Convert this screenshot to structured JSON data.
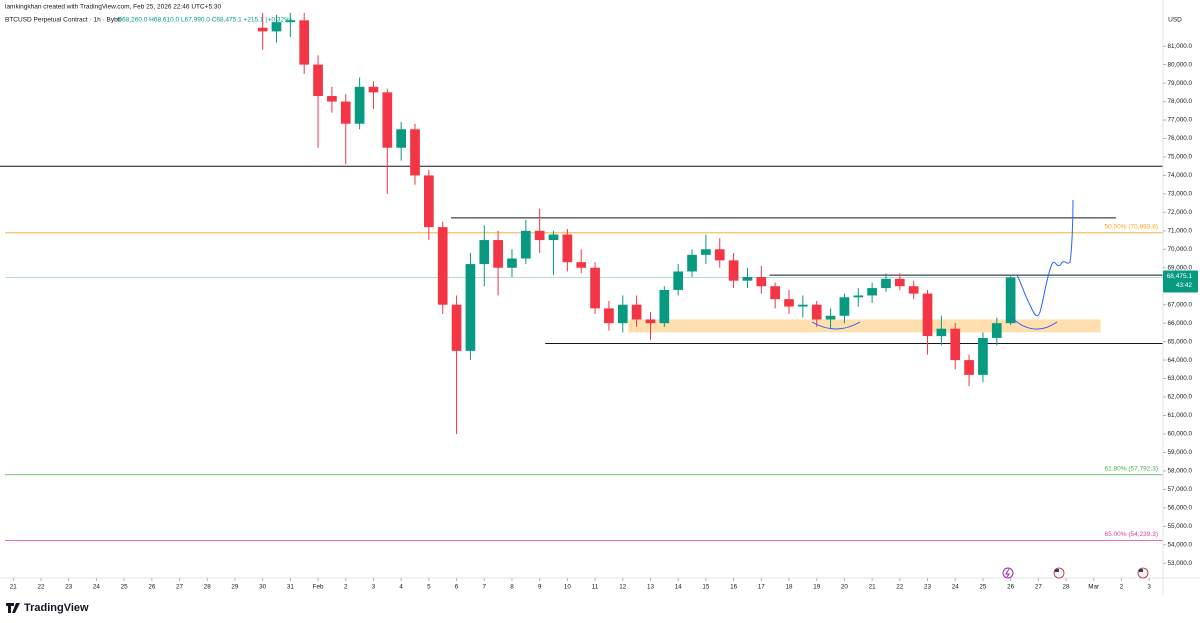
{
  "chart_data": {
    "type": "candlestick",
    "title": "lamkingkhan created with TradingView.com, Feb 25, 2026 22:46 UTC+5:30",
    "symbol": "BTCUSD Perpetual Contract · 1h · Bybit",
    "ohlc_legend": "O68,260.0 H68,610.0 L67,990.0 C68,475.1 +215.1 (+0.32%)",
    "currency": "USD",
    "watermark": "TradingView",
    "up_color": "#089981",
    "down_color": "#f23645",
    "xlim": [
      20.7,
      62.5
    ],
    "ylim": [
      52200,
      82850
    ],
    "xticks": [
      21,
      22,
      23,
      24,
      25,
      26,
      27,
      28,
      29,
      30,
      31,
      {
        "value": 32,
        "label": "Feb"
      },
      {
        "value": 33,
        "label": "2"
      },
      {
        "value": 34,
        "label": "3"
      },
      {
        "value": 35,
        "label": "4"
      },
      {
        "value": 36,
        "label": "5"
      },
      {
        "value": 37,
        "label": "6"
      },
      {
        "value": 38,
        "label": "7"
      },
      {
        "value": 39,
        "label": "8"
      },
      {
        "value": 40,
        "label": "9"
      },
      {
        "value": 41,
        "label": "10"
      },
      {
        "value": 42,
        "label": "11"
      },
      {
        "value": 43,
        "label": "12"
      },
      {
        "value": 44,
        "label": "13"
      },
      {
        "value": 45,
        "label": "14"
      },
      {
        "value": 46,
        "label": "15"
      },
      {
        "value": 47,
        "label": "16"
      },
      {
        "value": 48,
        "label": "17"
      },
      {
        "value": 49,
        "label": "18"
      },
      {
        "value": 50,
        "label": "19"
      },
      {
        "value": 51,
        "label": "20"
      },
      {
        "value": 52,
        "label": "21"
      },
      {
        "value": 53,
        "label": "22"
      },
      {
        "value": 54,
        "label": "23"
      },
      {
        "value": 55,
        "label": "24"
      },
      {
        "value": 56,
        "label": "25"
      },
      {
        "value": 57,
        "label": "26"
      },
      {
        "value": 58,
        "label": "27"
      },
      {
        "value": 59,
        "label": "28"
      },
      {
        "value": 60,
        "label": "Mar"
      },
      {
        "value": 61,
        "label": "2"
      },
      {
        "value": 62,
        "label": "3"
      }
    ],
    "yticks": [
      {
        "value": 53000,
        "label": "53,000.0"
      },
      {
        "value": 54000,
        "label": "54,000.0"
      },
      {
        "value": 55000,
        "label": "55,000.0"
      },
      {
        "value": 56000,
        "label": "56,000.0"
      },
      {
        "value": 57000,
        "label": "57,000.0"
      },
      {
        "value": 58000,
        "label": "58,000.0"
      },
      {
        "value": 59000,
        "label": "59,000.0"
      },
      {
        "value": 60000,
        "label": "60,000.0"
      },
      {
        "value": 61000,
        "label": "61,000.0"
      },
      {
        "value": 62000,
        "label": "62,000.0"
      },
      {
        "value": 63000,
        "label": "63,000.0"
      },
      {
        "value": 64000,
        "label": "64,000.0"
      },
      {
        "value": 65000,
        "label": "65,000.0"
      },
      {
        "value": 66000,
        "label": "66,000.0"
      },
      {
        "value": 67000,
        "label": "67,000.0"
      },
      {
        "value": 68000,
        "label": "68,000.0"
      },
      {
        "value": 69000,
        "label": "69,000.0"
      },
      {
        "value": 70000,
        "label": "70,000.0"
      },
      {
        "value": 71000,
        "label": "71,000.0"
      },
      {
        "value": 72000,
        "label": "72,000.0"
      },
      {
        "value": 73000,
        "label": "73,000.0"
      },
      {
        "value": 74000,
        "label": "74,000.0"
      },
      {
        "value": 75000,
        "label": "75,000.0"
      },
      {
        "value": 76000,
        "label": "76,000.0"
      },
      {
        "value": 77000,
        "label": "77,000.0"
      },
      {
        "value": 78000,
        "label": "78,000.0"
      },
      {
        "value": 79000,
        "label": "79,000.0"
      },
      {
        "value": 80000,
        "label": "80,000.0"
      },
      {
        "value": 81000,
        "label": "81,000.0"
      }
    ],
    "x": [
      30,
      30.5,
      31,
      31.5,
      32,
      32.5,
      33,
      33.5,
      34,
      34.5,
      35,
      35.5,
      36,
      36.5,
      37,
      37.5,
      38,
      38.5,
      39,
      39.5,
      40,
      40.5,
      41,
      41.5,
      42,
      42.5,
      43,
      43.5,
      44,
      44.5,
      45,
      45.5,
      46,
      46.5,
      47,
      47.5,
      48,
      48.5,
      49,
      49.5,
      50,
      50.5,
      51,
      51.5,
      52,
      52.5,
      53,
      53.5,
      54,
      54.5,
      55,
      55.5,
      56,
      56.5,
      57
    ],
    "open": [
      82000,
      81800,
      82300,
      82400,
      80000,
      78300,
      78000,
      76800,
      78800,
      78500,
      75500,
      76500,
      74000,
      71200,
      67000,
      64500,
      69200,
      70500,
      69000,
      69500,
      71000,
      70500,
      70800,
      69300,
      69000,
      66800,
      66000,
      67000,
      66200,
      66000,
      67800,
      68800,
      69700,
      70000,
      69400,
      68300,
      68500,
      68000,
      67300,
      66900,
      67000,
      66200,
      66400,
      67400,
      67500,
      67900,
      68400,
      68000,
      67600,
      65300,
      65700,
      64000,
      63200,
      65200,
      66000
    ],
    "high": [
      82800,
      82700,
      82800,
      82800,
      80500,
      78800,
      78400,
      79300,
      79100,
      78700,
      76900,
      76800,
      74300,
      71500,
      67500,
      69800,
      71300,
      71000,
      70000,
      71600,
      72200,
      71000,
      71100,
      70000,
      69300,
      67200,
      67500,
      67500,
      66600,
      68000,
      69200,
      70000,
      70800,
      70600,
      69800,
      69000,
      69100,
      68200,
      67800,
      67500,
      67200,
      66800,
      67600,
      67900,
      68200,
      68700,
      68700,
      68300,
      67800,
      66400,
      66000,
      64300,
      65500,
      66300,
      68610
    ],
    "low": [
      80800,
      81200,
      81500,
      79500,
      75500,
      77400,
      74600,
      76500,
      77600,
      73000,
      74800,
      73500,
      70500,
      66500,
      60000,
      64000,
      68000,
      67500,
      68500,
      69200,
      69800,
      68600,
      68800,
      68700,
      66500,
      65600,
      65500,
      65800,
      65100,
      65800,
      67500,
      68500,
      69200,
      69000,
      67900,
      67900,
      67600,
      66800,
      66500,
      66300,
      65800,
      65700,
      66000,
      66900,
      67100,
      67700,
      67800,
      67300,
      64300,
      64800,
      63500,
      62600,
      62800,
      64800,
      65900
    ],
    "close": [
      81800,
      82300,
      82400,
      80000,
      78300,
      78000,
      76800,
      78800,
      78500,
      75500,
      76500,
      74000,
      71200,
      67000,
      64500,
      69200,
      70500,
      69000,
      69500,
      71000,
      70500,
      70800,
      69300,
      69000,
      66800,
      66000,
      67000,
      66200,
      66000,
      67800,
      68800,
      69700,
      70000,
      69400,
      68300,
      68500,
      68000,
      67300,
      66900,
      67000,
      66200,
      66400,
      67400,
      67500,
      67900,
      68400,
      68000,
      67600,
      65300,
      65700,
      64000,
      63200,
      65200,
      66000,
      68475.1
    ],
    "last_price": {
      "value": 68475.1,
      "label": "68,475.1"
    },
    "countdown": "43:42",
    "hlines": [
      {
        "value": 74500,
        "color": "#131722"
      },
      {
        "value": 71700,
        "x": [
          36.8,
          60.8
        ],
        "color": "#131722"
      },
      {
        "value": 68600,
        "x": [
          48.3,
          62.5
        ],
        "color": "#131722"
      },
      {
        "value": 64900,
        "x": [
          40.2,
          62.5
        ],
        "color": "#131722"
      }
    ],
    "fib_levels": [
      {
        "value": 70893.8,
        "label": "50.00% (70,893.8)",
        "color": "#f5a623"
      },
      {
        "value": 57792.3,
        "label": "61.80% (57,792.3)",
        "color": "#4caf50"
      },
      {
        "value": 54239.3,
        "label": "65.00% (54,239.3)",
        "color": "#e040a0"
      }
    ],
    "zone": {
      "low": 65500,
      "high": 66200,
      "x": [
        43.2,
        60.25
      ],
      "color": "#ffd9a0"
    }
  }
}
